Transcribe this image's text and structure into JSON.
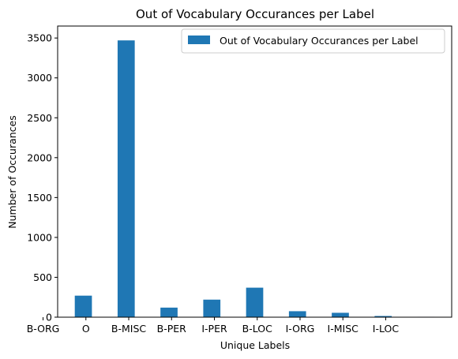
{
  "chart_data": {
    "type": "bar",
    "title": "Out of Vocabulary Occurances per Label",
    "xlabel": "Unique Labels",
    "ylabel": "Number of Occurances",
    "categories": [
      "B-ORG",
      "O",
      "B-MISC",
      "B-PER",
      "I-PER",
      "B-LOC",
      "I-ORG",
      "I-MISC",
      "I-LOC"
    ],
    "series": [
      {
        "name": "Out of Vocabulary Occurances per Label",
        "values": [
          270,
          3470,
          120,
          220,
          370,
          75,
          55,
          15,
          5
        ],
        "color": "#1f77b4"
      }
    ],
    "ylim": [
      0,
      3650
    ],
    "yticks": [
      0,
      500,
      1000,
      1500,
      2000,
      2500,
      3000,
      3500
    ],
    "grid": false,
    "legend_position": "top-right"
  }
}
